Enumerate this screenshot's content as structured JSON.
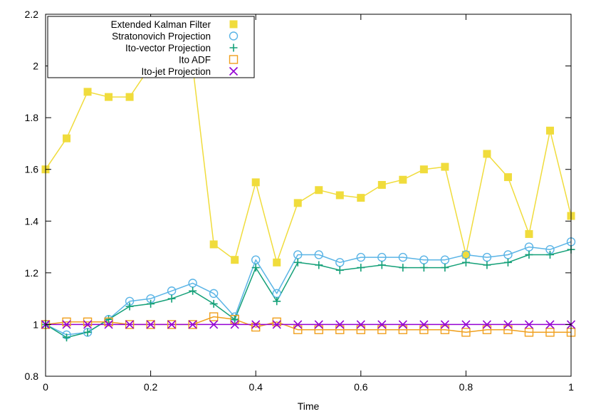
{
  "chart_data": {
    "type": "line",
    "title": "",
    "xlabel": "Time",
    "ylabel": "",
    "xlim": [
      0,
      1
    ],
    "ylim": [
      0.8,
      2.2
    ],
    "x_ticks": [
      "0",
      "0.2",
      "0.4",
      "0.6",
      "0.8",
      "1"
    ],
    "y_ticks": [
      "0.8",
      "1",
      "1.2",
      "1.4",
      "1.6",
      "1.8",
      "2",
      "2.2"
    ],
    "grid": false,
    "legend_position": "top-left",
    "series": [
      {
        "name": "Extended Kalman Filter",
        "color": "#f0dc3c",
        "marker": "filled-square",
        "x": [
          0,
          0.04,
          0.08,
          0.12,
          0.16,
          0.2,
          0.24,
          0.28,
          0.32,
          0.36,
          0.4,
          0.44,
          0.48,
          0.52,
          0.56,
          0.6,
          0.64,
          0.68,
          0.72,
          0.76,
          0.8,
          0.84,
          0.88,
          0.92,
          0.96,
          1.0
        ],
        "values": [
          1.6,
          1.72,
          1.9,
          1.88,
          1.88,
          2.0,
          2.0,
          2.0,
          1.31,
          1.25,
          1.55,
          1.24,
          1.47,
          1.52,
          1.5,
          1.49,
          1.54,
          1.56,
          1.6,
          1.61,
          1.27,
          1.66,
          1.57,
          1.35,
          1.75,
          1.42
        ]
      },
      {
        "name": "Stratonovich Projection",
        "color": "#5ab4e6",
        "marker": "open-circle",
        "x": [
          0,
          0.04,
          0.08,
          0.12,
          0.16,
          0.2,
          0.24,
          0.28,
          0.32,
          0.36,
          0.4,
          0.44,
          0.48,
          0.52,
          0.56,
          0.6,
          0.64,
          0.68,
          0.72,
          0.76,
          0.8,
          0.84,
          0.88,
          0.92,
          0.96,
          1.0
        ],
        "values": [
          1.0,
          0.96,
          0.97,
          1.02,
          1.09,
          1.1,
          1.13,
          1.16,
          1.12,
          1.03,
          1.25,
          1.12,
          1.27,
          1.27,
          1.24,
          1.26,
          1.26,
          1.26,
          1.25,
          1.25,
          1.27,
          1.26,
          1.27,
          1.3,
          1.29,
          1.32
        ]
      },
      {
        "name": "Ito-vector Projection",
        "color": "#14a078",
        "marker": "plus",
        "x": [
          0,
          0.04,
          0.08,
          0.12,
          0.16,
          0.2,
          0.24,
          0.28,
          0.32,
          0.36,
          0.4,
          0.44,
          0.48,
          0.52,
          0.56,
          0.6,
          0.64,
          0.68,
          0.72,
          0.76,
          0.8,
          0.84,
          0.88,
          0.92,
          0.96,
          1.0
        ],
        "values": [
          1.0,
          0.95,
          0.97,
          1.02,
          1.07,
          1.08,
          1.1,
          1.13,
          1.08,
          1.02,
          1.22,
          1.09,
          1.24,
          1.23,
          1.21,
          1.22,
          1.23,
          1.22,
          1.22,
          1.22,
          1.24,
          1.23,
          1.24,
          1.27,
          1.27,
          1.29
        ]
      },
      {
        "name": "Ito ADF",
        "color": "#f0a01e",
        "marker": "open-square",
        "x": [
          0,
          0.04,
          0.08,
          0.12,
          0.16,
          0.2,
          0.24,
          0.28,
          0.32,
          0.36,
          0.4,
          0.44,
          0.48,
          0.52,
          0.56,
          0.6,
          0.64,
          0.68,
          0.72,
          0.76,
          0.8,
          0.84,
          0.88,
          0.92,
          0.96,
          1.0
        ],
        "values": [
          1.0,
          1.01,
          1.01,
          1.01,
          1.0,
          1.0,
          1.0,
          1.0,
          1.03,
          1.02,
          0.99,
          1.01,
          0.98,
          0.98,
          0.98,
          0.98,
          0.98,
          0.98,
          0.98,
          0.98,
          0.97,
          0.98,
          0.98,
          0.97,
          0.97,
          0.97
        ]
      },
      {
        "name": "Ito-jet Projection",
        "color": "#9400d3",
        "marker": "cross",
        "x": [
          0,
          0.04,
          0.08,
          0.12,
          0.16,
          0.2,
          0.24,
          0.28,
          0.32,
          0.36,
          0.4,
          0.44,
          0.48,
          0.52,
          0.56,
          0.6,
          0.64,
          0.68,
          0.72,
          0.76,
          0.8,
          0.84,
          0.88,
          0.92,
          0.96,
          1.0
        ],
        "values": [
          1.0,
          1.0,
          1.0,
          1.0,
          1.0,
          1.0,
          1.0,
          1.0,
          1.0,
          1.0,
          1.0,
          1.0,
          1.0,
          1.0,
          1.0,
          1.0,
          1.0,
          1.0,
          1.0,
          1.0,
          1.0,
          1.0,
          1.0,
          1.0,
          1.0,
          1.0
        ]
      }
    ]
  }
}
